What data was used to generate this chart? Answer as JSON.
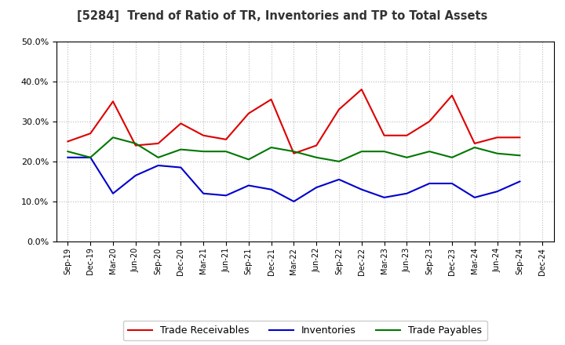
{
  "title": "[5284]  Trend of Ratio of TR, Inventories and TP to Total Assets",
  "x_labels": [
    "Sep-19",
    "Dec-19",
    "Mar-20",
    "Jun-20",
    "Sep-20",
    "Dec-20",
    "Mar-21",
    "Jun-21",
    "Sep-21",
    "Dec-21",
    "Mar-22",
    "Jun-22",
    "Sep-22",
    "Dec-22",
    "Mar-23",
    "Jun-23",
    "Sep-23",
    "Dec-23",
    "Mar-24",
    "Jun-24",
    "Sep-24",
    "Dec-24"
  ],
  "trade_receivables": [
    0.25,
    0.27,
    0.35,
    0.24,
    0.245,
    0.295,
    0.265,
    0.255,
    0.32,
    0.355,
    0.22,
    0.24,
    0.33,
    0.38,
    0.265,
    0.265,
    0.3,
    0.365,
    0.245,
    0.26,
    0.26,
    null
  ],
  "inventories": [
    0.21,
    0.21,
    0.12,
    0.165,
    0.19,
    0.185,
    0.12,
    0.115,
    0.14,
    0.13,
    0.1,
    0.135,
    0.155,
    0.13,
    0.11,
    0.12,
    0.145,
    0.145,
    0.11,
    0.125,
    0.15,
    null
  ],
  "trade_payables": [
    0.225,
    0.21,
    0.26,
    0.245,
    0.21,
    0.23,
    0.225,
    0.225,
    0.205,
    0.235,
    0.225,
    0.21,
    0.2,
    0.225,
    0.225,
    0.21,
    0.225,
    0.21,
    0.235,
    0.22,
    0.215,
    null
  ],
  "tr_color": "#dd0000",
  "inv_color": "#0000cc",
  "tp_color": "#007700",
  "ylim": [
    0.0,
    0.5
  ],
  "yticks": [
    0.0,
    0.1,
    0.2,
    0.3,
    0.4,
    0.5
  ],
  "background_color": "#ffffff",
  "plot_bg_color": "#ffffff",
  "grid_color": "#aaaaaa",
  "legend_labels": [
    "Trade Receivables",
    "Inventories",
    "Trade Payables"
  ]
}
